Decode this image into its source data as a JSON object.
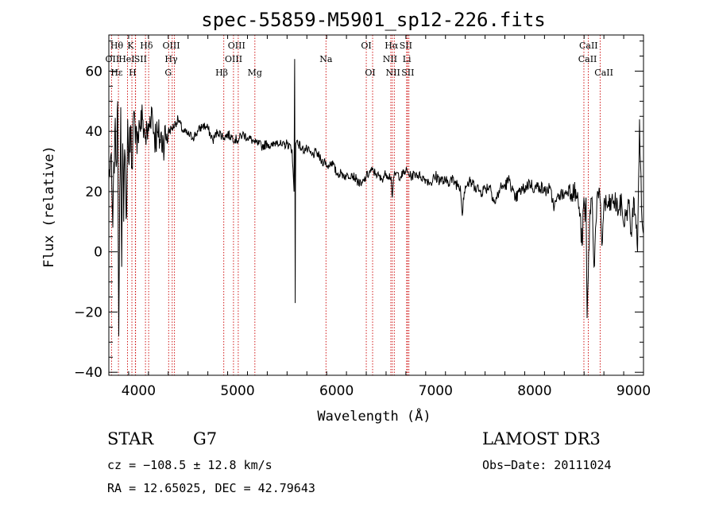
{
  "chart_data": {
    "type": "line",
    "title": "spec-55859-M5901_sp12-226.fits",
    "xlabel": "Wavelength (Å)",
    "ylabel": "Flux (relative)",
    "xlim": [
      3700,
      9100
    ],
    "ylim": [
      -41,
      72
    ],
    "x_ticks": [
      4000,
      5000,
      6000,
      7000,
      8000,
      9000
    ],
    "x_tick_labels": [
      "4000",
      "5000",
      "6000",
      "7000",
      "8000",
      "9000"
    ],
    "y_ticks": [
      -40,
      -20,
      0,
      20,
      40,
      60
    ],
    "y_tick_labels": [
      "−40",
      "−20",
      "0",
      "20",
      "40",
      "60"
    ],
    "line_color": "#000000",
    "marker_color": "#cc0000",
    "series": [
      {
        "name": "flux",
        "x": [
          3700,
          3720,
          3740,
          3760,
          3780,
          3790,
          3800,
          3810,
          3820,
          3830,
          3840,
          3850,
          3860,
          3870,
          3880,
          3890,
          3900,
          3920,
          3933,
          3950,
          3968,
          3990,
          4010,
          4040,
          4070,
          4102,
          4130,
          4160,
          4200,
          4250,
          4300,
          4340,
          4400,
          4450,
          4500,
          4550,
          4600,
          4650,
          4700,
          4750,
          4800,
          4861,
          4900,
          4950,
          5000,
          5050,
          5100,
          5150,
          5175,
          5200,
          5250,
          5300,
          5350,
          5400,
          5450,
          5500,
          5550,
          5570,
          5575,
          5577,
          5579,
          5582,
          5585,
          5588,
          5600,
          5650,
          5700,
          5750,
          5800,
          5850,
          5890,
          5900,
          5950,
          6000,
          6050,
          6100,
          6150,
          6200,
          6250,
          6300,
          6350,
          6400,
          6450,
          6500,
          6550,
          6563,
          6580,
          6600,
          6650,
          6700,
          6750,
          6800,
          6850,
          6900,
          6950,
          7000,
          7050,
          7100,
          7150,
          7200,
          7250,
          7270,
          7280,
          7300,
          7350,
          7400,
          7450,
          7500,
          7550,
          7600,
          7650,
          7700,
          7750,
          7800,
          7850,
          7900,
          7950,
          8000,
          8050,
          8100,
          8150,
          8200,
          8250,
          8300,
          8350,
          8400,
          8430,
          8450,
          8480,
          8498,
          8510,
          8520,
          8530,
          8542,
          8560,
          8580,
          8600,
          8630,
          8662,
          8680,
          8700,
          8750,
          8800,
          8850,
          8880,
          8900,
          8920,
          8950,
          8980,
          9000,
          9020,
          9040,
          9060,
          9080,
          9100
        ],
        "values": [
          24,
          32,
          8,
          40,
          30,
          50,
          -28,
          20,
          48,
          -5,
          36,
          10,
          34,
          22,
          12,
          44,
          30,
          42,
          28,
          46,
          36,
          40,
          42,
          44,
          38,
          40,
          48,
          39,
          38,
          37,
          40,
          41,
          44,
          40,
          39,
          38,
          40,
          42,
          41,
          37,
          40,
          38,
          39,
          38,
          37,
          39,
          38,
          37,
          36,
          36,
          35,
          36,
          35,
          37,
          35,
          36,
          34,
          20,
          55,
          64,
          30,
          -17,
          20,
          36,
          37,
          34,
          34,
          32,
          33,
          30,
          30,
          28,
          30,
          26,
          26,
          25,
          26,
          24,
          22,
          25,
          27,
          26,
          24,
          26,
          25,
          18,
          25,
          26,
          25,
          27,
          25,
          26,
          25,
          24,
          23,
          25,
          24,
          23,
          24,
          23,
          22,
          12,
          18,
          22,
          23,
          22,
          20,
          21,
          22,
          16,
          21,
          22,
          24,
          17,
          20,
          21,
          23,
          21,
          22,
          20,
          21,
          15,
          19,
          19,
          21,
          20,
          18,
          15,
          2,
          18,
          10,
          18,
          -22,
          -8,
          14,
          18,
          -5,
          18,
          17,
          2,
          16,
          15,
          17,
          14,
          16,
          9,
          12,
          16,
          5,
          18,
          12,
          0,
          44,
          14,
          6
        ]
      }
    ],
    "spectral_lines": [
      {
        "label": "Hθ",
        "x": 3797,
        "row": 0,
        "label_x": 3780
      },
      {
        "label": "K",
        "x": 3933,
        "row": 0,
        "label_x": 3920
      },
      {
        "label": "Hδ",
        "x": 4102,
        "row": 0,
        "label_x": 4080
      },
      {
        "label": "OIII",
        "x": 4363,
        "row": 0,
        "label_x": 4330
      },
      {
        "label": "OIII",
        "x": 5007,
        "row": 0,
        "label_x": 4990
      },
      {
        "label": "OI",
        "x": 6300,
        "row": 0,
        "label_x": 6300
      },
      {
        "label": "Hα",
        "x": 6563,
        "row": 0,
        "label_x": 6555
      },
      {
        "label": "SII",
        "x": 6717,
        "row": 0,
        "label_x": 6700
      },
      {
        "label": "CaII",
        "x": 8498,
        "row": 0,
        "label_x": 8545
      },
      {
        "label": "OII",
        "x": 3727,
        "row": 1,
        "label_x": 3735
      },
      {
        "label": "HeI",
        "x": 3889,
        "row": 1,
        "label_x": 3880
      },
      {
        "label": "SII",
        "x": 4070,
        "row": 1,
        "label_x": 4020
      },
      {
        "label": "Hγ",
        "x": 4340,
        "row": 1,
        "label_x": 4330
      },
      {
        "label": "OIII",
        "x": 4959,
        "row": 1,
        "label_x": 4960
      },
      {
        "label": "Na",
        "x": 5893,
        "row": 1,
        "label_x": 5893
      },
      {
        "label": "NII",
        "x": 6548,
        "row": 1,
        "label_x": 6540
      },
      {
        "label": "Li",
        "x": 6708,
        "row": 1,
        "label_x": 6710
      },
      {
        "label": "CaII",
        "x": 8542,
        "row": 1,
        "label_x": 8535
      },
      {
        "label": "Hε",
        "x": 3970,
        "row": 2,
        "label_x": 3780
      },
      {
        "label": "H",
        "x": 3968,
        "row": 2,
        "label_x": 3940
      },
      {
        "label": "G",
        "x": 4304,
        "row": 2,
        "label_x": 4300
      },
      {
        "label": "Hβ",
        "x": 4861,
        "row": 2,
        "label_x": 4840
      },
      {
        "label": "Mg",
        "x": 5175,
        "row": 2,
        "label_x": 5175
      },
      {
        "label": "OI",
        "x": 6364,
        "row": 2,
        "label_x": 6340
      },
      {
        "label": "NII",
        "x": 6583,
        "row": 2,
        "label_x": 6570
      },
      {
        "label": "SII",
        "x": 6731,
        "row": 2,
        "label_x": 6720
      },
      {
        "label": "CaII",
        "x": 8662,
        "row": 2,
        "label_x": 8700
      }
    ]
  },
  "info": {
    "object_class": "STAR",
    "subclass": "G7",
    "survey": "LAMOST DR3",
    "cz": "cz = −108.5 ± 12.8 km/s",
    "obs_date": "Obs−Date: 20111024",
    "coords": "RA =  12.65025, DEC =  42.79643"
  }
}
